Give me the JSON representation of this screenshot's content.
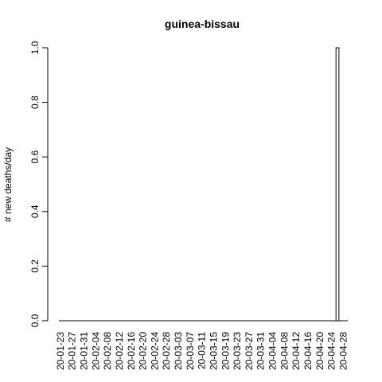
{
  "chart_data": {
    "type": "bar",
    "title": "guinea-bissau",
    "xlabel": "",
    "ylabel": "# new deaths/day",
    "ylim": [
      0,
      1
    ],
    "y_ticks": [
      "0.0",
      "0.2",
      "0.4",
      "0.6",
      "0.8",
      "1.0"
    ],
    "x_tick_labels": [
      "20-01-23",
      "20-01-27",
      "20-01-31",
      "20-02-04",
      "20-02-08",
      "20-02-12",
      "20-02-16",
      "20-02-20",
      "20-02-24",
      "20-02-28",
      "20-03-03",
      "20-03-07",
      "20-03-11",
      "20-03-15",
      "20-03-19",
      "20-03-23",
      "20-03-27",
      "20-03-31",
      "20-04-04",
      "20-04-08",
      "20-04-12",
      "20-04-16",
      "20-04-20",
      "20-04-24",
      "20-04-28"
    ],
    "x_start": "2020-01-23",
    "x_end": "2020-04-30",
    "series": [
      {
        "points": [
          {
            "x": "2020-04-26",
            "y": 1
          }
        ]
      }
    ],
    "grid": false,
    "bar_fill": "#ffffff",
    "bar_stroke": "#000000"
  }
}
